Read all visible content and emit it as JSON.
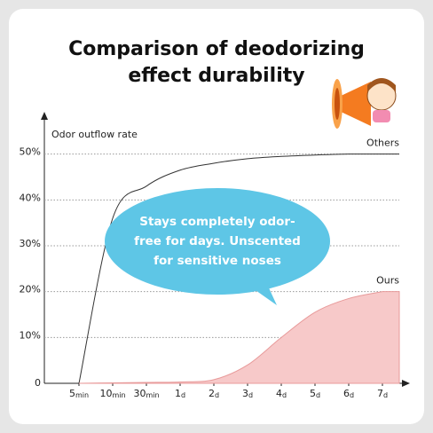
{
  "chart_data": {
    "type": "line",
    "title": "Comparison of deodorizing",
    "subtitle": "effect durability",
    "y_axis_label": "Odor outflow rate",
    "annotation": [
      "Stays completely odor-",
      "free for days. Unscented",
      "for sensitive noses"
    ],
    "categories": [
      "5min",
      "10min",
      "30min",
      "1d",
      "2d",
      "3d",
      "4d",
      "5d",
      "6d",
      "7d"
    ],
    "series": [
      {
        "name": "Others",
        "color": "#333333",
        "values": [
          0,
          36,
          43,
          46.5,
          48,
          49,
          49.5,
          49.8,
          50,
          50
        ]
      },
      {
        "name": "Ours",
        "color": "#f7c9c9",
        "values": [
          0,
          0.1,
          0.2,
          0.3,
          0.8,
          4,
          10,
          15.5,
          18.5,
          20
        ]
      }
    ],
    "ylim": [
      0,
      60
    ],
    "yticks": [
      0,
      {
        "value": 10,
        "label": "10%"
      },
      {
        "value": 20,
        "label": "20%"
      },
      {
        "value": 30,
        "label": "30%"
      },
      {
        "value": 40,
        "label": "40%"
      },
      {
        "value": 50,
        "label": "50%"
      }
    ],
    "grid": true
  }
}
